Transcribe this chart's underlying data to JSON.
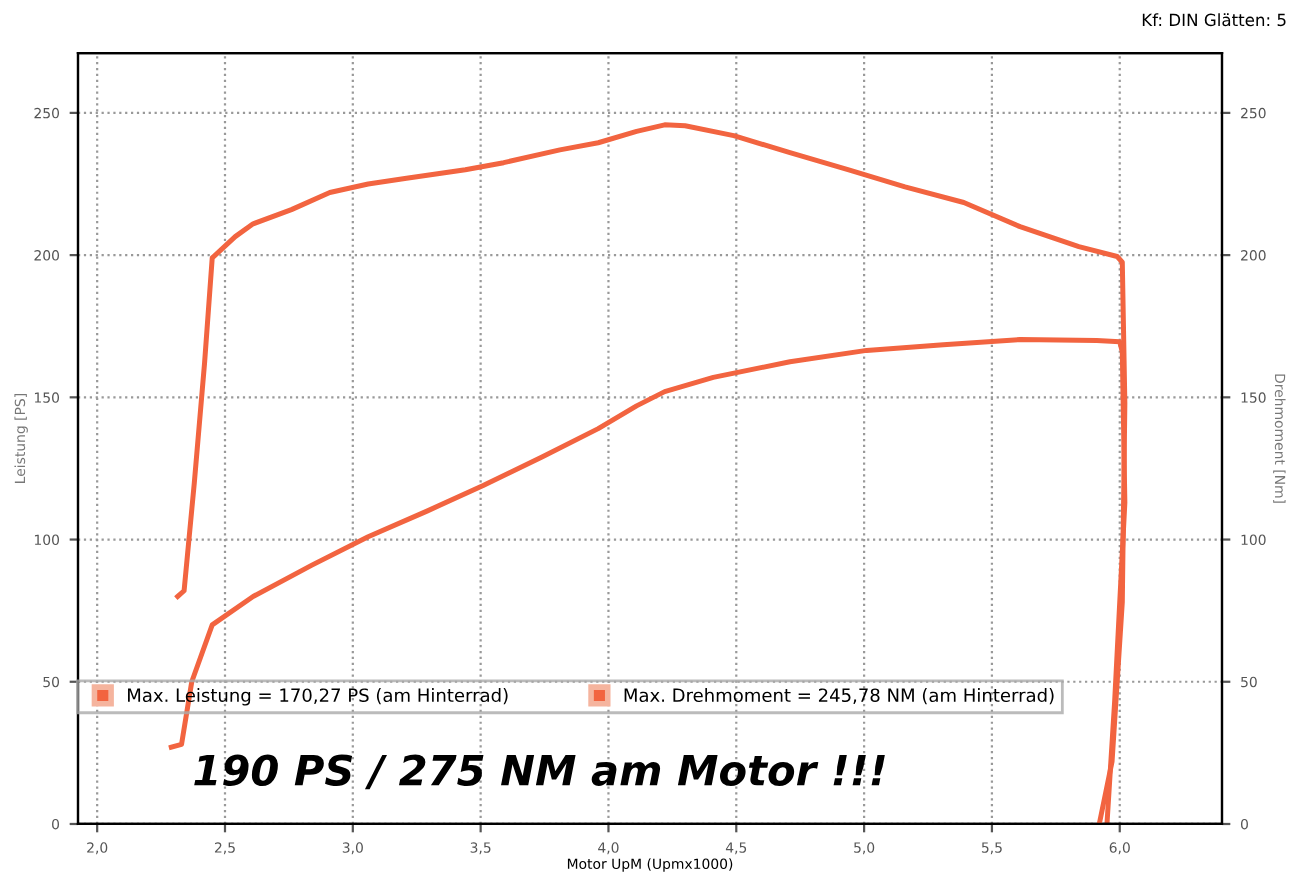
{
  "chart_data": {
    "type": "line",
    "xlabel": "Motor UpM (Upmx1000)",
    "ylabel": "Leistung [PS]",
    "y2label": "Drehmoment [Nm]",
    "annotations": [
      "Kf: DIN Glätten: 5",
      "190 PS / 275 NM am Motor !!!"
    ],
    "xlim": [
      1.925,
      6.4
    ],
    "xticks": [
      {
        "value": 2.0,
        "label": "2,0"
      },
      {
        "value": 2.5,
        "label": "2,5"
      },
      {
        "value": 3.0,
        "label": "3,0"
      },
      {
        "value": 3.5,
        "label": "3,5"
      },
      {
        "value": 4.0,
        "label": "4,0"
      },
      {
        "value": 4.5,
        "label": "4,5"
      },
      {
        "value": 5.0,
        "label": "5,0"
      },
      {
        "value": 5.5,
        "label": "5,5"
      },
      {
        "value": 6.0,
        "label": "6,0"
      }
    ],
    "ylim": [
      0,
      271
    ],
    "yticks": [
      0,
      50,
      100,
      150,
      200,
      250
    ],
    "y2lim": [
      0,
      271
    ],
    "y2ticks": [
      0,
      50,
      100,
      150,
      200,
      250
    ],
    "grid": true,
    "legend": "bottom",
    "marker": "none",
    "line_style": "solid",
    "series": [
      {
        "name": "Max. Leistung = 170,27 PS (am Hinterrad)",
        "color": "#f26440",
        "axis": "y",
        "x": [
          2.29,
          2.33,
          2.37,
          2.45,
          2.61,
          2.84,
          3.06,
          3.29,
          3.51,
          3.74,
          3.96,
          4.11,
          4.22,
          4.41,
          4.71,
          5.01,
          5.31,
          5.61,
          5.91,
          6.0,
          6.01,
          6.02,
          5.98,
          5.95
        ],
        "values": [
          27,
          28,
          50,
          70,
          80,
          91,
          101,
          110,
          119,
          129,
          139,
          147,
          152,
          157,
          162.5,
          166.5,
          168.5,
          170.3,
          170,
          169.5,
          166,
          113,
          43,
          0
        ]
      },
      {
        "name": "Max. Drehmoment = 245,78 NM (am Hinterrad)",
        "color": "#f26440",
        "axis": "y2",
        "x": [
          2.315,
          2.34,
          2.38,
          2.42,
          2.45,
          2.54,
          2.61,
          2.76,
          2.91,
          3.06,
          3.21,
          3.44,
          3.59,
          3.81,
          3.96,
          4.11,
          4.22,
          4.3,
          4.49,
          4.71,
          4.94,
          5.16,
          5.39,
          5.61,
          5.84,
          5.99,
          6.01,
          6.02,
          6.01,
          5.97,
          5.92
        ],
        "values": [
          80,
          82,
          120,
          162,
          199,
          206.5,
          211,
          216,
          222,
          225,
          227,
          230,
          232.5,
          237,
          239.5,
          243.5,
          245.8,
          245.5,
          242,
          236,
          230,
          224,
          218.5,
          210,
          203,
          199.5,
          197.5,
          148,
          78,
          22,
          0
        ]
      }
    ]
  }
}
